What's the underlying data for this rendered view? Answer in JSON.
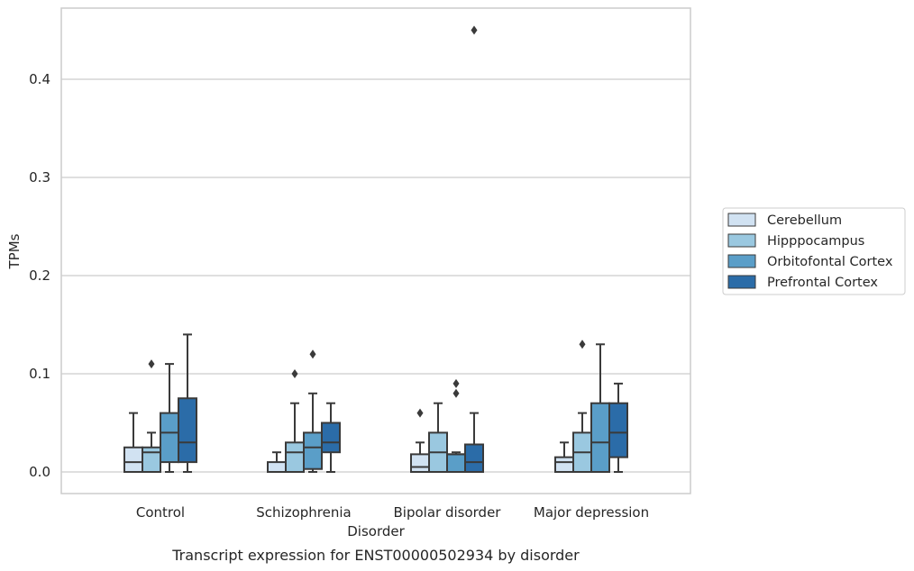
{
  "chart_data": {
    "type": "boxplot",
    "title": "",
    "caption": "Transcript expression for ENST00000502934 by disorder",
    "xlabel": "Disorder",
    "ylabel": "TPMs",
    "ylim": [
      -0.022,
      0.475
    ],
    "yticks": [
      0.0,
      0.1,
      0.2,
      0.3,
      0.4
    ],
    "ytick_labels": [
      "0.0",
      "0.1",
      "0.2",
      "0.3",
      "0.4"
    ],
    "categories": [
      "Control",
      "Schizophrenia",
      "Bipolar disorder",
      "Major depression"
    ],
    "grid": "horizontal",
    "legend_position": "right",
    "series": [
      {
        "name": "Cerebellum",
        "color": "#d1e2f2",
        "boxes": [
          {
            "whislo": 0.0,
            "q1": 0.0,
            "med": 0.01,
            "q3": 0.025,
            "whishi": 0.06,
            "fliers": []
          },
          {
            "whislo": 0.0,
            "q1": 0.0,
            "med": 0.0,
            "q3": 0.01,
            "whishi": 0.02,
            "fliers": []
          },
          {
            "whislo": 0.0,
            "q1": 0.0,
            "med": 0.005,
            "q3": 0.018,
            "whishi": 0.03,
            "fliers": [
              0.06
            ]
          },
          {
            "whislo": 0.0,
            "q1": 0.0,
            "med": 0.01,
            "q3": 0.015,
            "whishi": 0.03,
            "fliers": []
          }
        ]
      },
      {
        "name": "Hipppocampus",
        "color": "#9ac8e0",
        "boxes": [
          {
            "whislo": 0.0,
            "q1": 0.0,
            "med": 0.02,
            "q3": 0.025,
            "whishi": 0.04,
            "fliers": [
              0.11
            ]
          },
          {
            "whislo": 0.0,
            "q1": 0.0,
            "med": 0.02,
            "q3": 0.03,
            "whishi": 0.07,
            "fliers": [
              0.1
            ]
          },
          {
            "whislo": 0.0,
            "q1": 0.0,
            "med": 0.02,
            "q3": 0.04,
            "whishi": 0.07,
            "fliers": []
          },
          {
            "whislo": 0.0,
            "q1": 0.0,
            "med": 0.02,
            "q3": 0.04,
            "whishi": 0.06,
            "fliers": [
              0.13
            ]
          }
        ]
      },
      {
        "name": "Orbitofontal Cortex",
        "color": "#5a9ec8",
        "boxes": [
          {
            "whislo": 0.0,
            "q1": 0.01,
            "med": 0.04,
            "q3": 0.06,
            "whishi": 0.11,
            "fliers": []
          },
          {
            "whislo": 0.0,
            "q1": 0.003,
            "med": 0.025,
            "q3": 0.04,
            "whishi": 0.08,
            "fliers": [
              0.12
            ]
          },
          {
            "whislo": 0.0,
            "q1": 0.0,
            "med": 0.018,
            "q3": 0.018,
            "whishi": 0.02,
            "fliers": [
              0.08,
              0.09
            ]
          },
          {
            "whislo": 0.0,
            "q1": 0.0,
            "med": 0.03,
            "q3": 0.07,
            "whishi": 0.13,
            "fliers": []
          }
        ]
      },
      {
        "name": "Prefrontal Cortex",
        "color": "#2b6ca8",
        "boxes": [
          {
            "whislo": 0.0,
            "q1": 0.01,
            "med": 0.03,
            "q3": 0.075,
            "whishi": 0.14,
            "fliers": []
          },
          {
            "whislo": 0.0,
            "q1": 0.02,
            "med": 0.03,
            "q3": 0.05,
            "whishi": 0.07,
            "fliers": []
          },
          {
            "whislo": 0.0,
            "q1": 0.0,
            "med": 0.01,
            "q3": 0.028,
            "whishi": 0.06,
            "fliers": [
              0.45
            ]
          },
          {
            "whislo": 0.0,
            "q1": 0.015,
            "med": 0.04,
            "q3": 0.07,
            "whishi": 0.09,
            "fliers": []
          }
        ]
      }
    ],
    "colors": {
      "frame": "#cccccc",
      "grid": "#cccccc",
      "line": "#3a3a3a",
      "text": "#262626"
    }
  }
}
